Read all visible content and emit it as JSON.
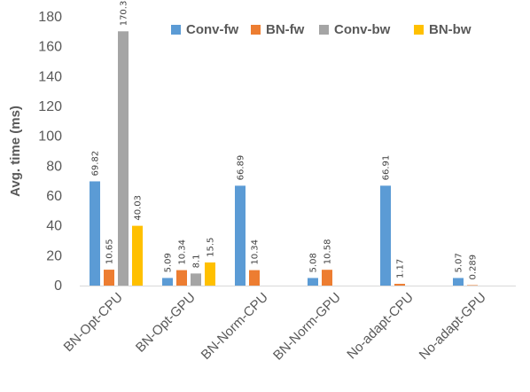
{
  "chart_data": {
    "type": "bar",
    "title": "",
    "xlabel": "",
    "ylabel": "Avg. time (ms)",
    "ylim": [
      0,
      180
    ],
    "yticks": [
      0,
      20,
      40,
      60,
      80,
      100,
      120,
      140,
      160,
      180
    ],
    "grid": false,
    "legend_position": "top-right",
    "categories": [
      "BN-Opt-CPU",
      "BN-Opt-GPU",
      "BN-Norm-CPU",
      "BN-Norm-GPU",
      "No-adapt-CPU",
      "No-adapt-GPU"
    ],
    "series": [
      {
        "name": "Conv-fw",
        "color": "#5B9BD5",
        "values": [
          69.82,
          5.09,
          66.89,
          5.08,
          66.91,
          5.07
        ],
        "labels": [
          "69.82",
          "5.09",
          "66.89",
          "5.08",
          "66.91",
          "5.07"
        ]
      },
      {
        "name": "BN-fw",
        "color": "#ED7D31",
        "values": [
          10.65,
          10.34,
          10.34,
          10.58,
          1.17,
          0.289
        ],
        "labels": [
          "10.65",
          "10.34",
          "10.34",
          "10.58",
          "1.17",
          "0.289"
        ]
      },
      {
        "name": "Conv-bw",
        "color": "#A5A5A5",
        "values": [
          170.32,
          8.1,
          null,
          null,
          null,
          null
        ],
        "labels": [
          "170.32",
          "8.1",
          null,
          null,
          null,
          null
        ]
      },
      {
        "name": "BN-bw",
        "color": "#FFC000",
        "values": [
          40.03,
          15.5,
          null,
          null,
          null,
          null
        ],
        "labels": [
          "40.03",
          "15.5",
          null,
          null,
          null,
          null
        ]
      }
    ]
  }
}
